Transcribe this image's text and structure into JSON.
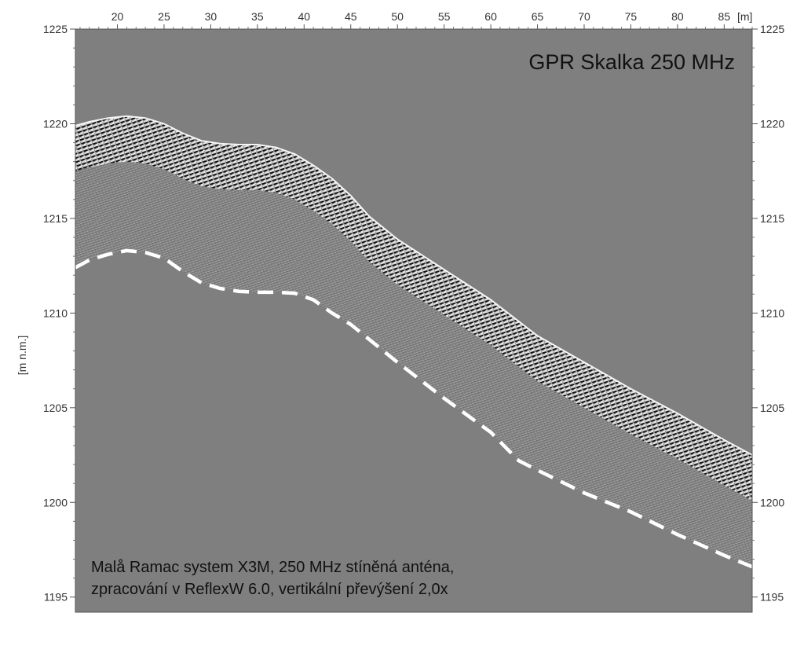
{
  "chart_data": {
    "type": "heatmap",
    "title": "GPR Skalka 250 MHz",
    "annotation": [
      "Malå Ramac system X3M, 250 MHz stíněná anténa,",
      "zpracování v ReflexW 6.0, vertikální převýšení 2,0x"
    ],
    "xlabel": "[m]",
    "ylabel": "[m n.m.]",
    "xlim": [
      15.5,
      88
    ],
    "ylim": [
      1194.2,
      1225
    ],
    "x_ticks": [
      20,
      25,
      30,
      35,
      40,
      45,
      50,
      55,
      60,
      65,
      70,
      75,
      80,
      85
    ],
    "y_ticks": [
      1225,
      1220,
      1215,
      1210,
      1205,
      1200,
      1195
    ],
    "surface_profile": {
      "x": [
        15.5,
        17,
        19,
        21,
        23,
        25,
        27,
        29,
        31,
        33,
        35,
        37,
        39,
        41,
        43,
        45,
        47,
        50,
        55,
        60,
        65,
        70,
        75,
        80,
        85,
        88
      ],
      "y": [
        1219.9,
        1220.1,
        1220.3,
        1220.4,
        1220.3,
        1220.0,
        1219.5,
        1219.1,
        1218.95,
        1218.9,
        1218.9,
        1218.75,
        1218.4,
        1217.8,
        1217.1,
        1216.2,
        1215.1,
        1213.9,
        1212.3,
        1210.7,
        1208.8,
        1207.4,
        1206.0,
        1204.7,
        1203.3,
        1202.5
      ]
    },
    "interpreted_boundary": {
      "style": "dashed",
      "color": "#ffffff",
      "x": [
        15.5,
        17,
        19,
        21,
        23,
        25,
        27,
        29,
        31,
        33,
        35,
        37,
        39,
        41,
        43,
        45,
        50,
        55,
        60,
        63,
        65,
        70,
        75,
        80,
        85,
        88
      ],
      "y": [
        1212.4,
        1212.8,
        1213.1,
        1213.3,
        1213.2,
        1212.9,
        1212.2,
        1211.6,
        1211.3,
        1211.15,
        1211.1,
        1211.1,
        1211.05,
        1210.7,
        1210.0,
        1209.4,
        1207.4,
        1205.5,
        1203.7,
        1202.2,
        1201.7,
        1200.5,
        1199.5,
        1198.3,
        1197.2,
        1196.6
      ]
    },
    "colors": {
      "background": "#7f7f7f",
      "boundary": "#ffffff",
      "frame": "#555555"
    },
    "grid": false
  }
}
